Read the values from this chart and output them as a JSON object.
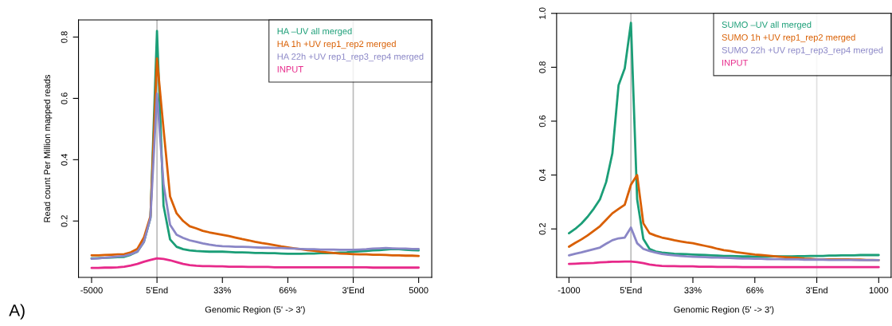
{
  "chart_data": [
    {
      "type": "line",
      "ylabel": "Read count Per Million mapped reads",
      "xlabel": "Genomic Region (5' -> 3')",
      "annotations": [
        "A)"
      ],
      "categories": [
        "-5000",
        null,
        null,
        null,
        null,
        null,
        null,
        null,
        null,
        null,
        "5'End",
        null,
        null,
        null,
        null,
        null,
        null,
        null,
        null,
        null,
        "33%",
        null,
        null,
        null,
        null,
        null,
        null,
        null,
        null,
        null,
        "66%",
        null,
        null,
        null,
        null,
        null,
        null,
        null,
        null,
        null,
        "3'End",
        null,
        null,
        null,
        null,
        null,
        null,
        null,
        null,
        null,
        "5000"
      ],
      "ylim": [
        0.016,
        0.856
      ],
      "yticks": [
        0.2,
        0.4,
        0.6,
        0.8
      ],
      "legend": "top right",
      "ref_lines": [
        {
          "axis": "x",
          "value": "5'End",
          "label": null,
          "color": "#bbbbbb"
        },
        {
          "axis": "x",
          "value": "3'End",
          "label": null,
          "color": "#bbbbbb"
        }
      ],
      "series": [
        {
          "name": "HA –UV all merged",
          "color": "#1b9e77",
          "values": [
            0.078,
            0.079,
            0.08,
            0.081,
            0.082,
            0.083,
            0.09,
            0.1,
            0.132,
            0.21,
            0.82,
            0.25,
            0.14,
            0.116,
            0.108,
            0.104,
            0.102,
            0.101,
            0.1,
            0.1,
            0.1,
            0.099,
            0.098,
            0.098,
            0.097,
            0.096,
            0.096,
            0.095,
            0.095,
            0.094,
            0.093,
            0.093,
            0.093,
            0.094,
            0.094,
            0.095,
            0.095,
            0.096,
            0.097,
            0.098,
            0.1,
            0.101,
            0.102,
            0.104,
            0.105,
            0.107,
            0.109,
            0.108,
            0.106,
            0.105,
            0.104
          ]
        },
        {
          "name": "HA 1h +UV rep1_rep2 merged",
          "color": "#d95f02",
          "values": [
            0.088,
            0.088,
            0.089,
            0.09,
            0.091,
            0.092,
            0.098,
            0.109,
            0.146,
            0.216,
            0.73,
            0.5,
            0.28,
            0.225,
            0.2,
            0.183,
            0.176,
            0.168,
            0.163,
            0.159,
            0.155,
            0.151,
            0.146,
            0.141,
            0.137,
            0.132,
            0.128,
            0.125,
            0.121,
            0.117,
            0.114,
            0.111,
            0.108,
            0.105,
            0.103,
            0.1,
            0.098,
            0.096,
            0.094,
            0.093,
            0.092,
            0.091,
            0.091,
            0.09,
            0.09,
            0.089,
            0.088,
            0.088,
            0.087,
            0.087,
            0.086
          ]
        },
        {
          "name": "HA 22h +UV rep1_rep3_rep4 merged",
          "color": "#8a86c6",
          "values": [
            0.077,
            0.078,
            0.08,
            0.082,
            0.084,
            0.086,
            0.092,
            0.1,
            0.132,
            0.21,
            0.615,
            0.32,
            0.188,
            0.155,
            0.145,
            0.137,
            0.132,
            0.127,
            0.123,
            0.12,
            0.118,
            0.117,
            0.116,
            0.116,
            0.115,
            0.114,
            0.113,
            0.113,
            0.112,
            0.112,
            0.111,
            0.11,
            0.109,
            0.108,
            0.108,
            0.107,
            0.107,
            0.107,
            0.106,
            0.106,
            0.106,
            0.107,
            0.108,
            0.11,
            0.111,
            0.112,
            0.111,
            0.11,
            0.11,
            0.109,
            0.109
          ]
        },
        {
          "name": "INPUT",
          "color": "#e7298a",
          "values": [
            0.047,
            0.047,
            0.048,
            0.048,
            0.049,
            0.051,
            0.055,
            0.06,
            0.067,
            0.073,
            0.078,
            0.076,
            0.072,
            0.066,
            0.06,
            0.056,
            0.054,
            0.053,
            0.053,
            0.052,
            0.052,
            0.051,
            0.051,
            0.051,
            0.05,
            0.05,
            0.05,
            0.05,
            0.049,
            0.049,
            0.049,
            0.049,
            0.049,
            0.049,
            0.049,
            0.049,
            0.049,
            0.049,
            0.049,
            0.049,
            0.049,
            0.049,
            0.049,
            0.048,
            0.048,
            0.048,
            0.048,
            0.048,
            0.048,
            0.048,
            0.048
          ]
        }
      ]
    },
    {
      "type": "line",
      "xlabel": "Genomic Region (5' -> 3')",
      "categories": [
        "-1000",
        null,
        null,
        null,
        null,
        null,
        null,
        null,
        null,
        null,
        "5'End",
        null,
        null,
        null,
        null,
        null,
        null,
        null,
        null,
        null,
        "33%",
        null,
        null,
        null,
        null,
        null,
        null,
        null,
        null,
        null,
        "66%",
        null,
        null,
        null,
        null,
        null,
        null,
        null,
        null,
        null,
        "3'End",
        null,
        null,
        null,
        null,
        null,
        null,
        null,
        null,
        null,
        "1000"
      ],
      "ylim": [
        0.02,
        1.0
      ],
      "yticks": [
        0.2,
        0.4,
        0.6,
        0.8,
        {
          "value": 1.0,
          "label": "1.0"
        }
      ],
      "legend": "top right",
      "ref_lines": [
        {
          "axis": "x",
          "value": "5'End",
          "label": null,
          "color": "#bbbbbb"
        },
        {
          "axis": "x",
          "value": "3'End",
          "label": null,
          "color": "#e0e0e0"
        }
      ],
      "series": [
        {
          "name": "SUMO –UV all merged",
          "color": "#1b9e77",
          "values": [
            0.184,
            0.2,
            0.22,
            0.245,
            0.275,
            0.31,
            0.374,
            0.48,
            0.733,
            0.796,
            0.965,
            0.31,
            0.163,
            0.126,
            0.116,
            0.112,
            0.11,
            0.108,
            0.107,
            0.106,
            0.105,
            0.104,
            0.103,
            0.102,
            0.101,
            0.1,
            0.1,
            0.099,
            0.098,
            0.098,
            0.097,
            0.097,
            0.097,
            0.098,
            0.098,
            0.098,
            0.098,
            0.099,
            0.099,
            0.1,
            0.1,
            0.1,
            0.101,
            0.101,
            0.102,
            0.102,
            0.102,
            0.103,
            0.103,
            0.103,
            0.103
          ]
        },
        {
          "name": "SUMO 1h +UV rep1_rep2 merged",
          "color": "#d95f02",
          "values": [
            0.134,
            0.148,
            0.161,
            0.176,
            0.193,
            0.21,
            0.234,
            0.258,
            0.274,
            0.29,
            0.364,
            0.4,
            0.221,
            0.184,
            0.175,
            0.168,
            0.163,
            0.158,
            0.154,
            0.15,
            0.147,
            0.142,
            0.137,
            0.132,
            0.126,
            0.121,
            0.118,
            0.114,
            0.111,
            0.108,
            0.105,
            0.103,
            0.101,
            0.099,
            0.097,
            0.095,
            0.094,
            0.092,
            0.09,
            0.089,
            0.087,
            0.087,
            0.087,
            0.087,
            0.087,
            0.087,
            0.086,
            0.086,
            0.085,
            0.085,
            0.084
          ]
        },
        {
          "name": "SUMO 22h +UV rep1_rep3_rep4 merged",
          "color": "#8a86c6",
          "values": [
            0.102,
            0.108,
            0.113,
            0.119,
            0.125,
            0.131,
            0.145,
            0.158,
            0.165,
            0.168,
            0.205,
            0.147,
            0.126,
            0.118,
            0.112,
            0.107,
            0.104,
            0.102,
            0.1,
            0.098,
            0.097,
            0.096,
            0.095,
            0.094,
            0.094,
            0.093,
            0.092,
            0.091,
            0.09,
            0.09,
            0.089,
            0.089,
            0.088,
            0.088,
            0.088,
            0.087,
            0.087,
            0.087,
            0.086,
            0.086,
            0.086,
            0.086,
            0.085,
            0.085,
            0.085,
            0.085,
            0.085,
            0.084,
            0.084,
            0.084,
            0.084
          ]
        },
        {
          "name": "INPUT",
          "color": "#e7298a",
          "values": [
            0.07,
            0.071,
            0.072,
            0.073,
            0.074,
            0.076,
            0.077,
            0.078,
            0.078,
            0.079,
            0.079,
            0.077,
            0.073,
            0.068,
            0.065,
            0.063,
            0.062,
            0.062,
            0.061,
            0.061,
            0.061,
            0.06,
            0.06,
            0.06,
            0.059,
            0.059,
            0.059,
            0.059,
            0.058,
            0.058,
            0.058,
            0.058,
            0.058,
            0.058,
            0.058,
            0.058,
            0.058,
            0.058,
            0.058,
            0.058,
            0.058,
            0.058,
            0.058,
            0.058,
            0.058,
            0.058,
            0.058,
            0.058,
            0.058,
            0.058,
            0.058
          ]
        }
      ]
    }
  ]
}
